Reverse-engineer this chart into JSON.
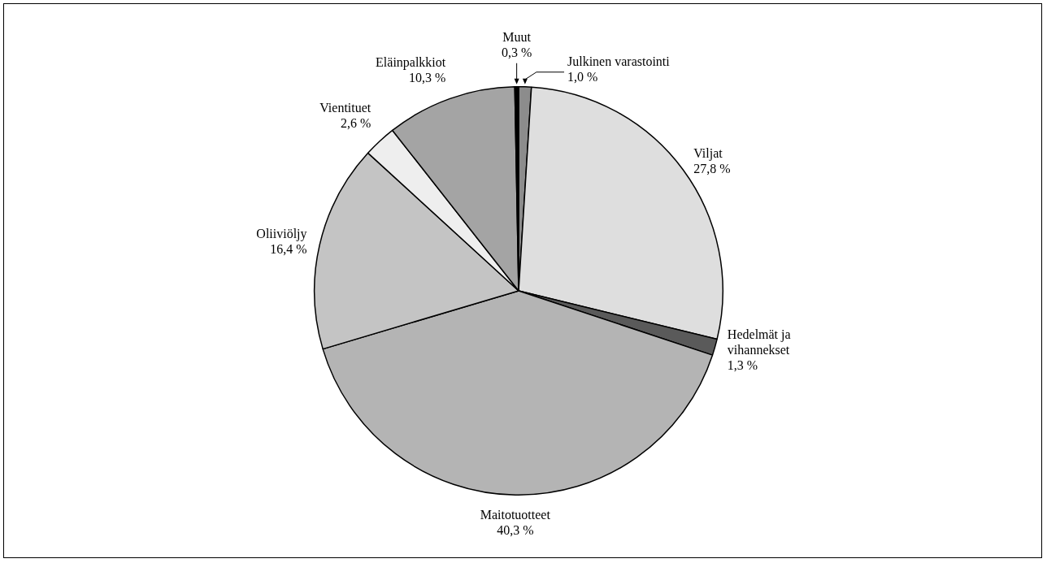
{
  "chart_data": {
    "type": "pie",
    "categories": [
      "Julkinen varastointi",
      "Viljat",
      "Hedelmät ja vihannekset",
      "Maitotuotteet",
      "Oliiviöljy",
      "Vientituet",
      "Eläinpalkkiot",
      "Muut"
    ],
    "values": [
      1.0,
      27.8,
      1.3,
      40.3,
      16.4,
      2.6,
      10.3,
      0.3
    ],
    "value_labels": [
      "1,0 %",
      "27,8 %",
      "1,3 %",
      "40,3 %",
      "16,4 %",
      "2,6 %",
      "10,3 %",
      "0,3 %"
    ],
    "colors": [
      "#8c8c8c",
      "#dedede",
      "#5a5a5a",
      "#b4b4b4",
      "#c4c4c4",
      "#eeeeee",
      "#a4a4a4",
      "#000000"
    ],
    "legend": false
  }
}
